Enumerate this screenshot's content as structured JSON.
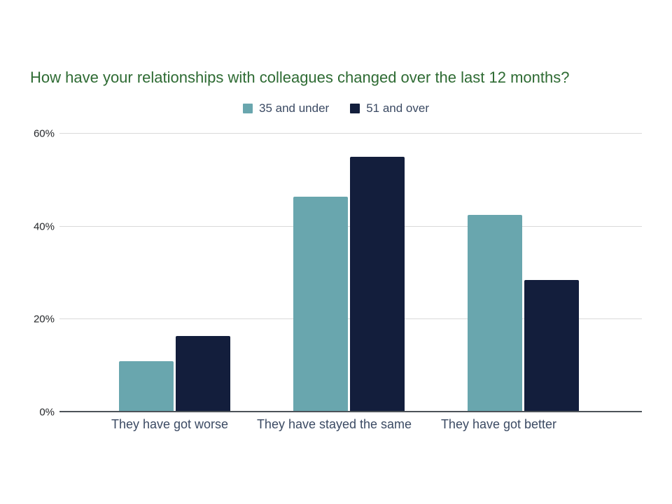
{
  "chart_data": {
    "type": "bar",
    "title": "How have your relationships with colleagues changed over the last 12 months?",
    "categories": [
      "They have got worse",
      "They have stayed the same",
      "They have got better"
    ],
    "series": [
      {
        "name": "35 and under",
        "color": "#69a6ae",
        "values": [
          11,
          46.5,
          42.5
        ]
      },
      {
        "name": "51 and over",
        "color": "#131e3c",
        "values": [
          16.5,
          55,
          28.5
        ]
      }
    ],
    "ylabel": "",
    "xlabel": "",
    "ylim": [
      0,
      60
    ],
    "yticks": [
      {
        "value": 0,
        "label": "0%"
      },
      {
        "value": 20,
        "label": "20%"
      },
      {
        "value": 40,
        "label": "40%"
      },
      {
        "value": 60,
        "label": "60%"
      }
    ],
    "grid": true,
    "legend_position": "top",
    "title_color": "#2e6b33",
    "label_color": "#3b4a63",
    "tick_color": "#26282b",
    "gridline_color": "#d9d9d9",
    "baseline_color": "#4d5359"
  }
}
